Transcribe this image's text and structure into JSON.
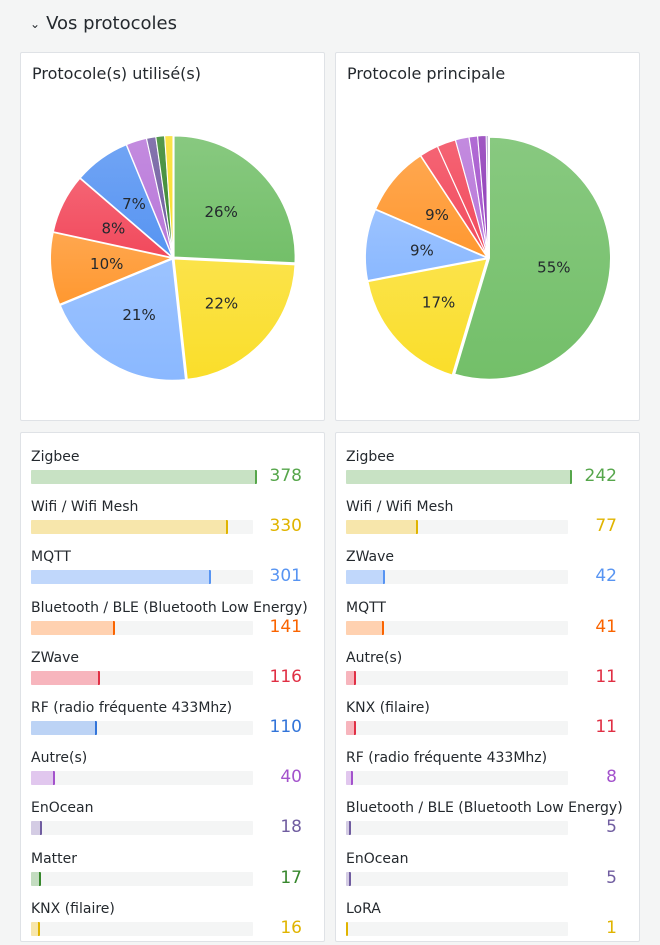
{
  "section": {
    "title": "Vos protocoles"
  },
  "panels": {
    "pie_left": {
      "title": "Protocole(s) utilisé(s)"
    },
    "pie_right": {
      "title": "Protocole principale"
    }
  },
  "chart_data": [
    {
      "type": "pie",
      "title": "Protocole(s) utilisé(s)",
      "labels": [
        "Zigbee",
        "Wifi / Wifi Mesh",
        "MQTT",
        "Bluetooth / BLE (Bluetooth Low Energy)",
        "ZWave",
        "RF (radio fréquente 433Mhz)",
        "Autre(s)",
        "EnOcean",
        "Matter",
        "KNX (filaire)"
      ],
      "values": [
        378,
        330,
        301,
        141,
        116,
        110,
        40,
        18,
        17,
        16
      ],
      "slice_labels": [
        "26%",
        "22%",
        "21%",
        "10%",
        "8%",
        "7%",
        "",
        "",
        "",
        ""
      ],
      "colors": [
        "#73bf69",
        "#fade2a",
        "#8ab8ff",
        "#ff9830",
        "#f2495c",
        "#5794f2",
        "#b877d9",
        "#705da0",
        "#37872d",
        "#fade2a"
      ]
    },
    {
      "type": "pie",
      "title": "Protocole principale",
      "labels": [
        "Zigbee",
        "Wifi / Wifi Mesh",
        "ZWave",
        "MQTT",
        "Autre(s)",
        "KNX (filaire)",
        "RF (radio fréquente 433Mhz)",
        "Bluetooth / BLE (Bluetooth Low Energy)",
        "EnOcean",
        "LoRA"
      ],
      "values": [
        242,
        77,
        42,
        41,
        11,
        11,
        8,
        5,
        5,
        1
      ],
      "slice_labels": [
        "55%",
        "17%",
        "9%",
        "9%",
        "",
        "",
        "",
        "",
        "",
        ""
      ],
      "colors": [
        "#73bf69",
        "#fade2a",
        "#8ab8ff",
        "#ff9830",
        "#f2495c",
        "#f2495c",
        "#b877d9",
        "#a352cc",
        "#8f3bb8",
        "#705da0"
      ]
    }
  ],
  "bars_left": {
    "max": 378,
    "items": [
      {
        "name": "Zigbee",
        "value": "378",
        "fraction": 1.0,
        "color": "#56a64b",
        "fill": "#c8e2c4"
      },
      {
        "name": "Wifi / Wifi Mesh",
        "value": "330",
        "fraction": 0.873,
        "color": "#e0b400",
        "fill": "#f7e6ab"
      },
      {
        "name": "MQTT",
        "value": "301",
        "fraction": 0.796,
        "color": "#5794f2",
        "fill": "#c0d7fb"
      },
      {
        "name": "Bluetooth / BLE (Bluetooth Low Energy)",
        "value": "141",
        "fraction": 0.373,
        "color": "#fa6400",
        "fill": "#ffd1b0"
      },
      {
        "name": "ZWave",
        "value": "116",
        "fraction": 0.307,
        "color": "#e02f44",
        "fill": "#f7b5bd"
      },
      {
        "name": "RF (radio fréquente 433Mhz)",
        "value": "110",
        "fraction": 0.291,
        "color": "#3274d9",
        "fill": "#bcd3f5"
      },
      {
        "name": "Autre(s)",
        "value": "40",
        "fraction": 0.106,
        "color": "#a352cc",
        "fill": "#e1c7ee"
      },
      {
        "name": "EnOcean",
        "value": "18",
        "fraction": 0.048,
        "color": "#705da0",
        "fill": "#d4cce4"
      },
      {
        "name": "Matter",
        "value": "17",
        "fraction": 0.045,
        "color": "#37872d",
        "fill": "#c3dcc0"
      },
      {
        "name": "KNX (filaire)",
        "value": "16",
        "fraction": 0.042,
        "color": "#e0b400",
        "fill": "#f7e6ab"
      }
    ]
  },
  "bars_right": {
    "max": 242,
    "items": [
      {
        "name": "Zigbee",
        "value": "242",
        "fraction": 1.0,
        "color": "#56a64b",
        "fill": "#c8e2c4"
      },
      {
        "name": "Wifi / Wifi Mesh",
        "value": "77",
        "fraction": 0.318,
        "color": "#e0b400",
        "fill": "#f7e6ab"
      },
      {
        "name": "ZWave",
        "value": "42",
        "fraction": 0.174,
        "color": "#5794f2",
        "fill": "#c0d7fb"
      },
      {
        "name": "MQTT",
        "value": "41",
        "fraction": 0.169,
        "color": "#fa6400",
        "fill": "#ffd1b0"
      },
      {
        "name": "Autre(s)",
        "value": "11",
        "fraction": 0.045,
        "color": "#e02f44",
        "fill": "#f7b5bd"
      },
      {
        "name": "KNX (filaire)",
        "value": "11",
        "fraction": 0.045,
        "color": "#e02f44",
        "fill": "#f7b5bd"
      },
      {
        "name": "RF (radio fréquente 433Mhz)",
        "value": "8",
        "fraction": 0.033,
        "color": "#a352cc",
        "fill": "#e1c7ee"
      },
      {
        "name": "Bluetooth / BLE (Bluetooth Low Energy)",
        "value": "5",
        "fraction": 0.021,
        "color": "#705da0",
        "fill": "#d4cce4"
      },
      {
        "name": "EnOcean",
        "value": "5",
        "fraction": 0.021,
        "color": "#705da0",
        "fill": "#d4cce4"
      },
      {
        "name": "LoRA",
        "value": "1",
        "fraction": 0.004,
        "color": "#e0b400",
        "fill": "#f7e6ab"
      }
    ]
  }
}
